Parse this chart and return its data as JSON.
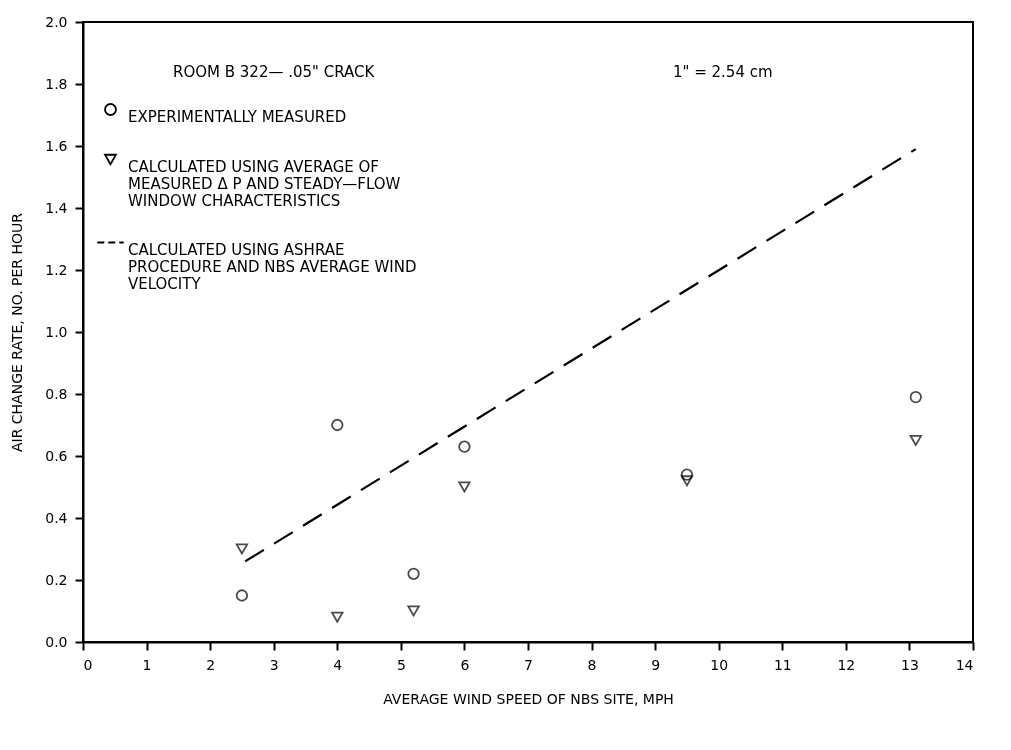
{
  "chart_data": {
    "type": "scatter",
    "xlabel": "AVERAGE WIND SPEED OF NBS SITE, MPH",
    "ylabel": "AIR CHANGE RATE, NO. PER HOUR",
    "annotations": [
      "ROOM B 322— .05\" CRACK",
      "1\" = 2.54 cm"
    ],
    "xlim": [
      0,
      14
    ],
    "xticks": [
      0,
      1,
      2,
      3,
      4,
      5,
      6,
      7,
      8,
      9,
      10,
      11,
      12,
      13,
      14
    ],
    "ylim": [
      0,
      2
    ],
    "yticks": [
      {
        "value": 0,
        "label": "0.0"
      },
      {
        "value": 0.2,
        "label": "0.2"
      },
      {
        "value": 0.4,
        "label": "0.4"
      },
      {
        "value": 0.6,
        "label": "0.6"
      },
      {
        "value": 0.8,
        "label": "0.8"
      },
      {
        "value": 1,
        "label": "1.0"
      },
      {
        "value": 1.2,
        "label": "1.2"
      },
      {
        "value": 1.4,
        "label": "1.4"
      },
      {
        "value": 1.6,
        "label": "1.6"
      },
      {
        "value": 1.8,
        "label": "1.8"
      },
      {
        "value": 2,
        "label": "2.0"
      }
    ],
    "grid": false,
    "legend": "top left",
    "series": [
      {
        "name": "EXPERIMENTALLY MEASURED",
        "marker": "circle",
        "color": "#000000",
        "x": [
          2.5,
          4,
          5.2,
          6,
          9.5,
          13.1
        ],
        "values": [
          0.15,
          0.7,
          0.22,
          0.63,
          0.54,
          0.79
        ]
      },
      {
        "name": "CALCULATED USING AVERAGE OF MEASURED Δ P AND STEADY—FLOW WINDOW CHARACTERISTICS",
        "marker": "triangle",
        "color": "#000000",
        "x": [
          2.5,
          4,
          5.2,
          6,
          9.5,
          13.1
        ],
        "values": [
          0.3,
          0.08,
          0.1,
          0.5,
          0.52,
          0.65
        ]
      },
      {
        "name": "CALCULATED USING ASHRAE PROCEDURE AND NBS AVERAGE WIND VELOCITY",
        "type": "line",
        "line_style": "dashed",
        "marker": "none",
        "color": "#000000",
        "x": [
          2.55,
          13.1
        ],
        "values": [
          0.26,
          1.59
        ]
      }
    ]
  }
}
